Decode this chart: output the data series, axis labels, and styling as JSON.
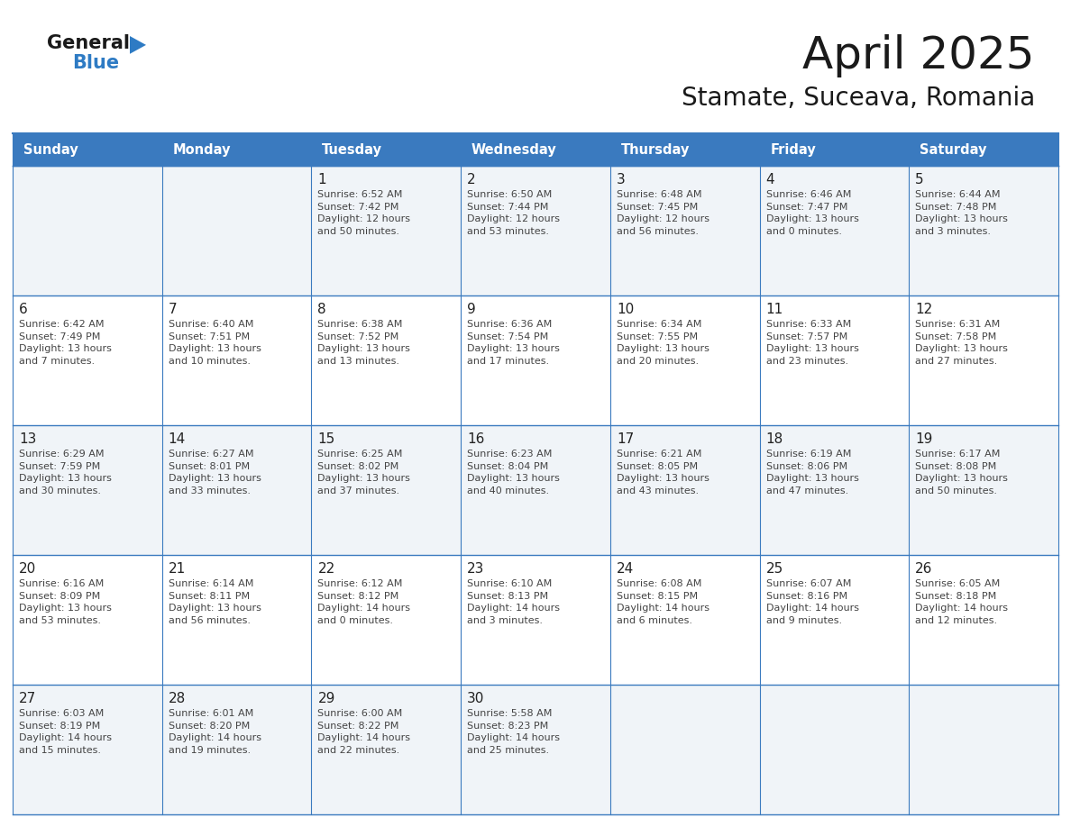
{
  "title": "April 2025",
  "subtitle": "Stamate, Suceava, Romania",
  "days_of_week": [
    "Sunday",
    "Monday",
    "Tuesday",
    "Wednesday",
    "Thursday",
    "Friday",
    "Saturday"
  ],
  "header_bg": "#3a7abf",
  "header_text": "#ffffff",
  "row_bg_odd": "#f0f4f8",
  "row_bg_even": "#ffffff",
  "cell_border_color": "#3a7abf",
  "day_number_color": "#222222",
  "cell_text_color": "#444444",
  "title_color": "#1a1a1a",
  "subtitle_color": "#1a1a1a",
  "logo_general_color": "#1a1a1a",
  "logo_blue_color": "#2e7bc4",
  "calendar_data": [
    [
      "",
      "",
      "1|Sunrise: 6:52 AM|Sunset: 7:42 PM|Daylight: 12 hours|and 50 minutes.",
      "2|Sunrise: 6:50 AM|Sunset: 7:44 PM|Daylight: 12 hours|and 53 minutes.",
      "3|Sunrise: 6:48 AM|Sunset: 7:45 PM|Daylight: 12 hours|and 56 minutes.",
      "4|Sunrise: 6:46 AM|Sunset: 7:47 PM|Daylight: 13 hours|and 0 minutes.",
      "5|Sunrise: 6:44 AM|Sunset: 7:48 PM|Daylight: 13 hours|and 3 minutes."
    ],
    [
      "6|Sunrise: 6:42 AM|Sunset: 7:49 PM|Daylight: 13 hours|and 7 minutes.",
      "7|Sunrise: 6:40 AM|Sunset: 7:51 PM|Daylight: 13 hours|and 10 minutes.",
      "8|Sunrise: 6:38 AM|Sunset: 7:52 PM|Daylight: 13 hours|and 13 minutes.",
      "9|Sunrise: 6:36 AM|Sunset: 7:54 PM|Daylight: 13 hours|and 17 minutes.",
      "10|Sunrise: 6:34 AM|Sunset: 7:55 PM|Daylight: 13 hours|and 20 minutes.",
      "11|Sunrise: 6:33 AM|Sunset: 7:57 PM|Daylight: 13 hours|and 23 minutes.",
      "12|Sunrise: 6:31 AM|Sunset: 7:58 PM|Daylight: 13 hours|and 27 minutes."
    ],
    [
      "13|Sunrise: 6:29 AM|Sunset: 7:59 PM|Daylight: 13 hours|and 30 minutes.",
      "14|Sunrise: 6:27 AM|Sunset: 8:01 PM|Daylight: 13 hours|and 33 minutes.",
      "15|Sunrise: 6:25 AM|Sunset: 8:02 PM|Daylight: 13 hours|and 37 minutes.",
      "16|Sunrise: 6:23 AM|Sunset: 8:04 PM|Daylight: 13 hours|and 40 minutes.",
      "17|Sunrise: 6:21 AM|Sunset: 8:05 PM|Daylight: 13 hours|and 43 minutes.",
      "18|Sunrise: 6:19 AM|Sunset: 8:06 PM|Daylight: 13 hours|and 47 minutes.",
      "19|Sunrise: 6:17 AM|Sunset: 8:08 PM|Daylight: 13 hours|and 50 minutes."
    ],
    [
      "20|Sunrise: 6:16 AM|Sunset: 8:09 PM|Daylight: 13 hours|and 53 minutes.",
      "21|Sunrise: 6:14 AM|Sunset: 8:11 PM|Daylight: 13 hours|and 56 minutes.",
      "22|Sunrise: 6:12 AM|Sunset: 8:12 PM|Daylight: 14 hours|and 0 minutes.",
      "23|Sunrise: 6:10 AM|Sunset: 8:13 PM|Daylight: 14 hours|and 3 minutes.",
      "24|Sunrise: 6:08 AM|Sunset: 8:15 PM|Daylight: 14 hours|and 6 minutes.",
      "25|Sunrise: 6:07 AM|Sunset: 8:16 PM|Daylight: 14 hours|and 9 minutes.",
      "26|Sunrise: 6:05 AM|Sunset: 8:18 PM|Daylight: 14 hours|and 12 minutes."
    ],
    [
      "27|Sunrise: 6:03 AM|Sunset: 8:19 PM|Daylight: 14 hours|and 15 minutes.",
      "28|Sunrise: 6:01 AM|Sunset: 8:20 PM|Daylight: 14 hours|and 19 minutes.",
      "29|Sunrise: 6:00 AM|Sunset: 8:22 PM|Daylight: 14 hours|and 22 minutes.",
      "30|Sunrise: 5:58 AM|Sunset: 8:23 PM|Daylight: 14 hours|and 25 minutes.",
      "",
      "",
      ""
    ]
  ]
}
